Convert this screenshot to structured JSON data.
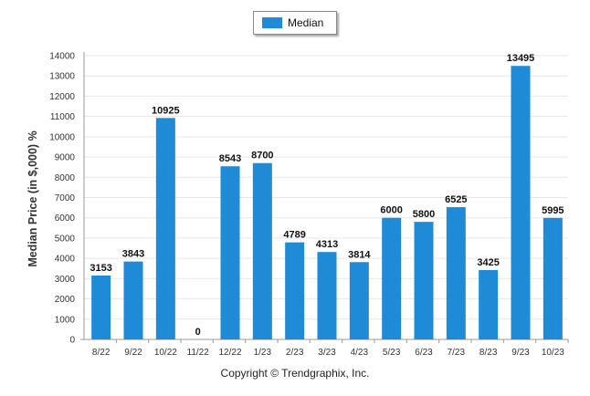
{
  "legend": {
    "label": "Median",
    "color": "#1f8bd6"
  },
  "footer": "Copyright © Trendgraphix, Inc.",
  "chart_data": {
    "type": "bar",
    "title": "",
    "xlabel": "",
    "ylabel": "Median Price (in $,000) %",
    "ylim": [
      0,
      14000
    ],
    "ytick_step": 1000,
    "grid": true,
    "legend_position": "top",
    "categories": [
      "8/22",
      "9/22",
      "10/22",
      "11/22",
      "12/22",
      "1/23",
      "2/23",
      "3/23",
      "4/23",
      "5/23",
      "6/23",
      "7/23",
      "8/23",
      "9/23",
      "10/23"
    ],
    "series": [
      {
        "name": "Median",
        "color": "#1f8bd6",
        "values": [
          3153,
          3843,
          10925,
          0,
          8543,
          8700,
          4789,
          4313,
          3814,
          6000,
          5800,
          6525,
          3425,
          13495,
          5995
        ]
      }
    ]
  }
}
